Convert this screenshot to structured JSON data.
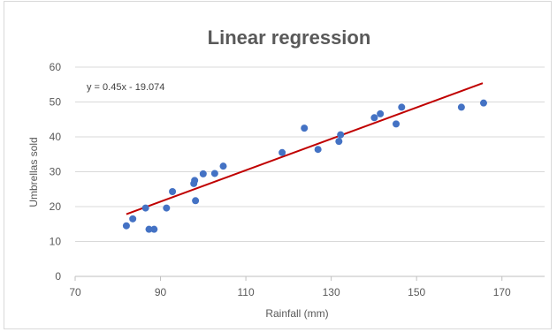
{
  "chart_data": {
    "type": "scatter",
    "title": "Linear regression",
    "xlabel": "Rainfall (mm)",
    "ylabel": "Umbrellas sold",
    "xlim": [
      70,
      180
    ],
    "ylim": [
      0,
      60
    ],
    "x_ticks": [
      "70",
      "90",
      "110",
      "130",
      "150",
      "170"
    ],
    "y_ticks": [
      "0",
      "10",
      "20",
      "30",
      "40",
      "50",
      "60"
    ],
    "x_tick_values": [
      70,
      90,
      110,
      130,
      150,
      170
    ],
    "y_tick_values": [
      0,
      10,
      20,
      30,
      40,
      50,
      60
    ],
    "grid": "horizontal",
    "point_color": "#4472c4",
    "trendline_color": "#c00000",
    "equation": "y = 0.45x - 19.074",
    "trendline": {
      "slope": 0.45,
      "intercept": -19.074,
      "x_start": 82,
      "x_end": 165.5
    },
    "points": [
      {
        "x": 82,
        "y": 14.5
      },
      {
        "x": 83.5,
        "y": 16.5
      },
      {
        "x": 86.5,
        "y": 19.6
      },
      {
        "x": 87.3,
        "y": 13.5
      },
      {
        "x": 88.5,
        "y": 13.5
      },
      {
        "x": 91.4,
        "y": 19.6
      },
      {
        "x": 92.8,
        "y": 24.3
      },
      {
        "x": 97.8,
        "y": 26.6
      },
      {
        "x": 98,
        "y": 27.5
      },
      {
        "x": 98.2,
        "y": 21.7
      },
      {
        "x": 100,
        "y": 29.4
      },
      {
        "x": 102.7,
        "y": 29.5
      },
      {
        "x": 104.7,
        "y": 31.6
      },
      {
        "x": 118.5,
        "y": 35.5
      },
      {
        "x": 123.7,
        "y": 42.5
      },
      {
        "x": 126.9,
        "y": 36.4
      },
      {
        "x": 131.8,
        "y": 38.7
      },
      {
        "x": 132.2,
        "y": 40.6
      },
      {
        "x": 140.1,
        "y": 45.5
      },
      {
        "x": 141.5,
        "y": 46.6
      },
      {
        "x": 145.2,
        "y": 43.7
      },
      {
        "x": 146.5,
        "y": 48.5
      },
      {
        "x": 160.5,
        "y": 48.5
      },
      {
        "x": 165.7,
        "y": 49.7
      }
    ]
  }
}
